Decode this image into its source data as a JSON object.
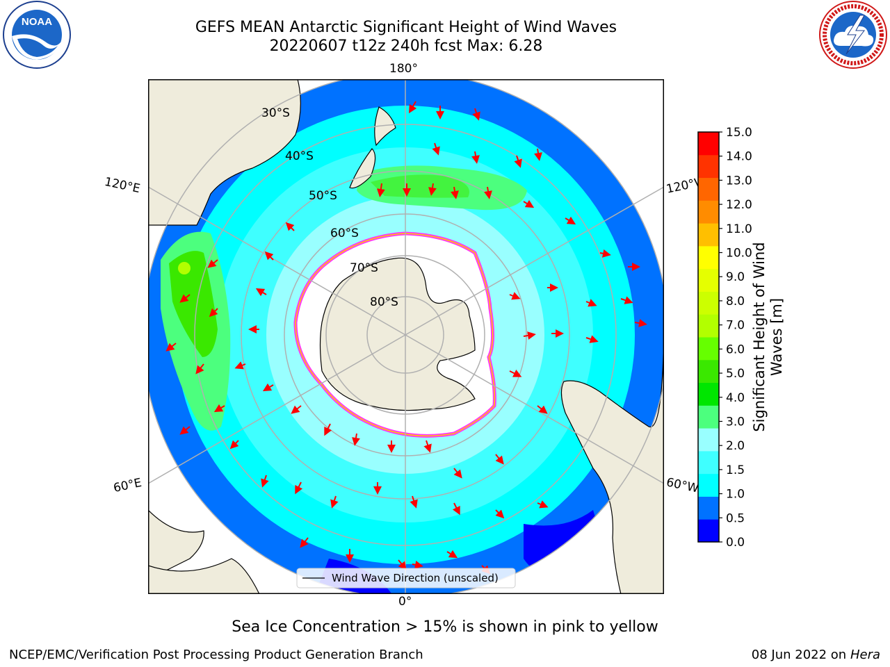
{
  "title": {
    "line1": "GEFS MEAN Antarctic Significant Height of Wind Waves",
    "line2": "20220607 t12z 240h fcst   Max: 6.28"
  },
  "map": {
    "projection": "south-polar-stereographic",
    "longitude_labels": {
      "top": "180°",
      "bottom": "0°",
      "upper_left": "120°E",
      "upper_right": "120°W",
      "lower_left": "60°E",
      "lower_right": "60°W"
    },
    "latitude_labels": [
      "30°S",
      "40°S",
      "50°S",
      "60°S",
      "70°S",
      "80°S"
    ],
    "colors": {
      "land": "#efecdc",
      "sea_ice_region": "#ffffff",
      "graticule": "#b0b0b0",
      "arrow": "#ff0000"
    },
    "legend": {
      "label": "Wind Wave Direction (unscaled)"
    }
  },
  "colorbar": {
    "label_line1": "Significant Height of Wind",
    "label_line2": "Waves [m]",
    "ticks": [
      "0.0",
      "0.5",
      "1.0",
      "1.5",
      "2.0",
      "3.0",
      "4.0",
      "5.0",
      "6.0",
      "7.0",
      "8.0",
      "9.0",
      "10.0",
      "11.0",
      "12.0",
      "13.0",
      "14.0",
      "15.0"
    ],
    "colors": [
      "#0000ff",
      "#0072ff",
      "#00ffff",
      "#3fffff",
      "#99ffff",
      "#4cff7e",
      "#00e600",
      "#3ae800",
      "#66ff00",
      "#b2ff00",
      "#ccff00",
      "#e5ff00",
      "#ffff00",
      "#ffbf00",
      "#ff8c00",
      "#ff6600",
      "#ff3300",
      "#ff0000"
    ]
  },
  "footer": {
    "note": "Sea Ice Concentration > 15% is shown in pink to yellow",
    "credit_left": "NCEP/EMC/Verification Post Processing Product Generation Branch",
    "date_text": "08 Jun 2022 on",
    "host": "Hera"
  },
  "logos": {
    "left": {
      "text": "NOAA",
      "ring_text": "NATIONAL OCEANIC AND ATMOSPHERIC ADMINISTRATION · U.S. DEPARTMENT OF COMMERCE"
    },
    "right": {
      "ring_text": "NATIONAL WEATHER SERVICE"
    }
  }
}
